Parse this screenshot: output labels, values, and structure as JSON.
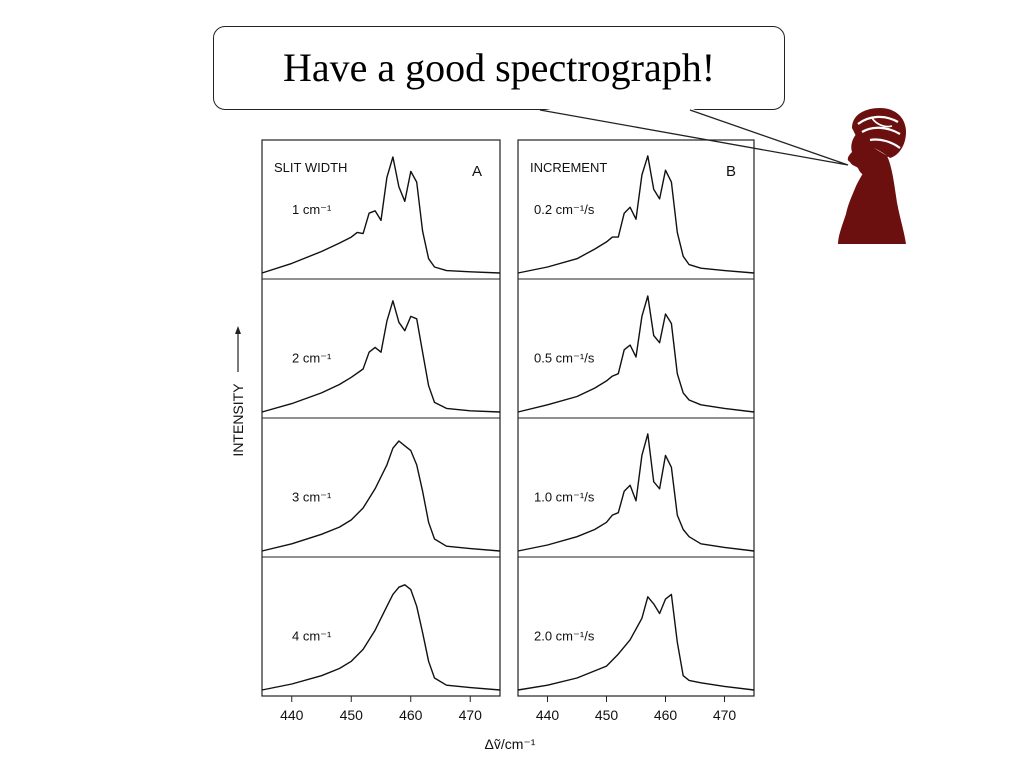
{
  "slide": {
    "speech_bubble_text": "Have a good spectrograph!",
    "portrait_color": "#6b0f0f"
  },
  "chart_data": [
    {
      "type": "line",
      "panel_letter": "A",
      "title": "SLIT WIDTH",
      "xlabel": "Δṽ/cm⁻¹",
      "ylabel": "INTENSITY",
      "xlim": [
        435,
        475
      ],
      "xticks": [
        "440",
        "450",
        "460",
        "470"
      ],
      "series": [
        {
          "name": "1 cm⁻¹",
          "x": [
            435,
            440,
            445,
            448,
            450,
            451,
            452,
            453,
            454,
            455,
            456,
            457,
            458,
            459,
            460,
            461,
            462,
            463,
            464,
            466,
            470,
            475
          ],
          "y": [
            0.0,
            0.08,
            0.18,
            0.25,
            0.3,
            0.34,
            0.33,
            0.5,
            0.52,
            0.44,
            0.8,
            0.97,
            0.72,
            0.6,
            0.85,
            0.76,
            0.35,
            0.12,
            0.05,
            0.02,
            0.01,
            0.0
          ]
        },
        {
          "name": "2 cm⁻¹",
          "x": [
            435,
            440,
            445,
            448,
            450,
            452,
            453,
            454,
            455,
            456,
            457,
            458,
            459,
            460,
            461,
            462,
            463,
            464,
            466,
            470,
            475
          ],
          "y": [
            0.0,
            0.07,
            0.16,
            0.23,
            0.29,
            0.36,
            0.5,
            0.54,
            0.5,
            0.76,
            0.93,
            0.75,
            0.68,
            0.8,
            0.78,
            0.5,
            0.22,
            0.08,
            0.03,
            0.01,
            0.0
          ]
        },
        {
          "name": "3 cm⁻¹",
          "x": [
            435,
            440,
            445,
            448,
            450,
            452,
            454,
            456,
            457,
            458,
            459,
            460,
            461,
            462,
            463,
            464,
            466,
            470,
            475
          ],
          "y": [
            0.0,
            0.06,
            0.14,
            0.2,
            0.26,
            0.36,
            0.52,
            0.72,
            0.86,
            0.92,
            0.88,
            0.84,
            0.72,
            0.5,
            0.24,
            0.1,
            0.04,
            0.02,
            0.0
          ]
        },
        {
          "name": "4 cm⁻¹",
          "x": [
            435,
            440,
            445,
            448,
            450,
            452,
            454,
            456,
            457,
            458,
            459,
            460,
            461,
            462,
            463,
            464,
            466,
            470,
            475
          ],
          "y": [
            0.0,
            0.05,
            0.12,
            0.18,
            0.24,
            0.34,
            0.5,
            0.7,
            0.8,
            0.86,
            0.88,
            0.84,
            0.7,
            0.48,
            0.24,
            0.1,
            0.04,
            0.02,
            0.0
          ]
        }
      ]
    },
    {
      "type": "line",
      "panel_letter": "B",
      "title": "INCREMENT",
      "xlabel": "Δṽ/cm⁻¹",
      "ylabel": "INTENSITY",
      "xlim": [
        435,
        475
      ],
      "xticks": [
        "440",
        "450",
        "460",
        "470"
      ],
      "series": [
        {
          "name": "0.2 cm⁻¹/s",
          "x": [
            435,
            440,
            445,
            448,
            450,
            451,
            452,
            453,
            454,
            455,
            456,
            457,
            458,
            459,
            460,
            461,
            462,
            463,
            464,
            466,
            470,
            475
          ],
          "y": [
            0.0,
            0.05,
            0.12,
            0.2,
            0.26,
            0.3,
            0.3,
            0.5,
            0.55,
            0.45,
            0.82,
            0.98,
            0.7,
            0.62,
            0.86,
            0.76,
            0.34,
            0.14,
            0.07,
            0.04,
            0.02,
            0.0
          ]
        },
        {
          "name": "0.5 cm⁻¹/s",
          "x": [
            435,
            440,
            445,
            448,
            450,
            451,
            452,
            453,
            454,
            455,
            456,
            457,
            458,
            459,
            460,
            461,
            462,
            463,
            464,
            466,
            470,
            475
          ],
          "y": [
            0.0,
            0.06,
            0.13,
            0.2,
            0.26,
            0.3,
            0.32,
            0.52,
            0.56,
            0.46,
            0.8,
            0.97,
            0.64,
            0.58,
            0.82,
            0.74,
            0.32,
            0.16,
            0.1,
            0.06,
            0.03,
            0.0
          ]
        },
        {
          "name": "1.0 cm⁻¹/s",
          "x": [
            435,
            440,
            445,
            448,
            450,
            451,
            452,
            453,
            454,
            455,
            456,
            457,
            458,
            459,
            460,
            461,
            462,
            463,
            464,
            466,
            470,
            475
          ],
          "y": [
            0.0,
            0.05,
            0.12,
            0.18,
            0.24,
            0.3,
            0.32,
            0.5,
            0.55,
            0.42,
            0.8,
            0.98,
            0.58,
            0.52,
            0.8,
            0.7,
            0.3,
            0.18,
            0.12,
            0.06,
            0.03,
            0.0
          ]
        },
        {
          "name": "2.0 cm⁻¹/s",
          "x": [
            435,
            440,
            445,
            450,
            452,
            454,
            456,
            457,
            458,
            459,
            460,
            461,
            462,
            463,
            464,
            466,
            470,
            475
          ],
          "y": [
            0.0,
            0.04,
            0.1,
            0.2,
            0.3,
            0.42,
            0.6,
            0.78,
            0.72,
            0.64,
            0.76,
            0.8,
            0.4,
            0.12,
            0.08,
            0.06,
            0.03,
            0.0
          ]
        }
      ]
    }
  ]
}
